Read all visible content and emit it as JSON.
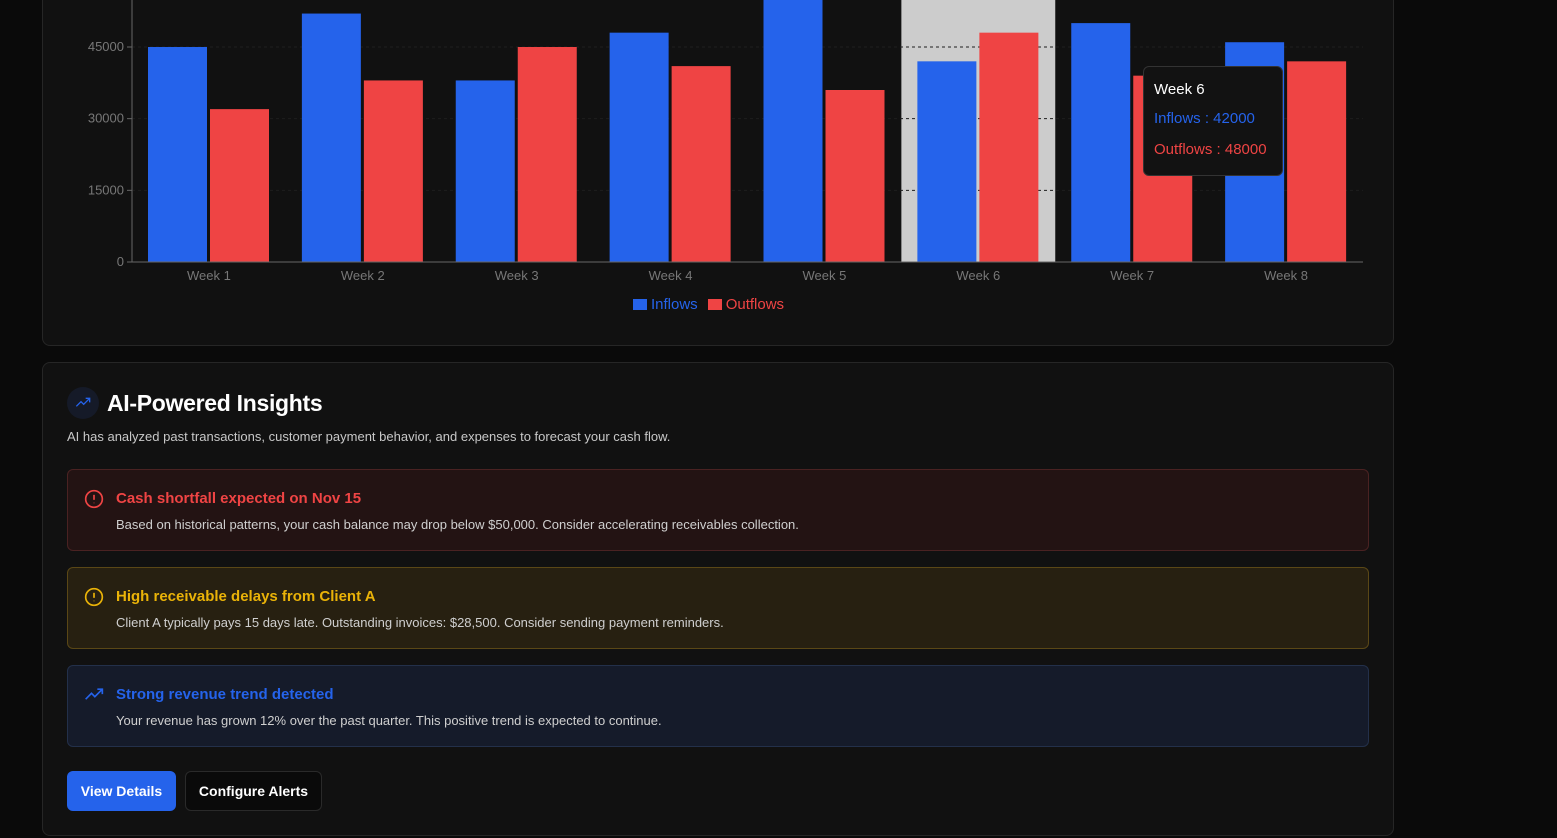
{
  "chart_data": {
    "type": "bar",
    "categories": [
      "Week 1",
      "Week 2",
      "Week 3",
      "Week 4",
      "Week 5",
      "Week 6",
      "Week 7",
      "Week 8"
    ],
    "series": [
      {
        "name": "Inflows",
        "color": "#2563eb",
        "values": [
          45000,
          52000,
          38000,
          48000,
          58000,
          42000,
          50000,
          46000
        ]
      },
      {
        "name": "Outflows",
        "color": "#ef4444",
        "values": [
          32000,
          38000,
          45000,
          41000,
          36000,
          48000,
          39000,
          42000
        ]
      }
    ],
    "yticks": [
      0,
      15000,
      30000,
      45000
    ],
    "ylim": [
      0,
      60000
    ],
    "legend": "bottom-center",
    "highlighted": "Week 6",
    "tooltip": {
      "title": "Week 6",
      "inflows": "Inflows : 42000",
      "outflows": "Outflows : 48000"
    }
  },
  "insights": {
    "title": "AI-Powered Insights",
    "subtitle": "AI has analyzed past transactions, customer payment behavior, and expenses to forecast your cash flow.",
    "alerts": [
      {
        "title": "Cash shortfall expected on Nov 15",
        "desc": "Based on historical patterns, your cash balance may drop below $50,000. Consider accelerating receivables collection."
      },
      {
        "title": "High receivable delays from Client A",
        "desc": "Client A typically pays 15 days late. Outstanding invoices: $28,500. Consider sending payment reminders."
      },
      {
        "title": "Strong revenue trend detected",
        "desc": "Your revenue has grown 12% over the past quarter. This positive trend is expected to continue."
      }
    ],
    "view_details": "View Details",
    "configure_alerts": "Configure Alerts"
  }
}
